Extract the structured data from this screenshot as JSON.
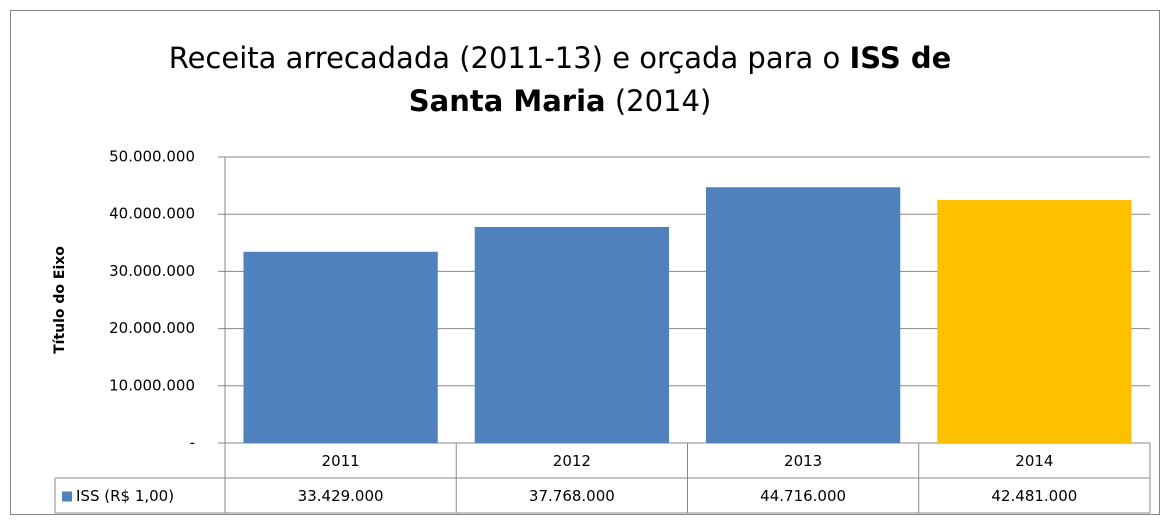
{
  "chart_data": {
    "type": "bar",
    "title_lines": [
      [
        {
          "text": "Receita arrecadada (2011-13) e orçada para o ",
          "bold": false
        },
        {
          "text": "ISS de",
          "bold": true
        }
      ],
      [
        {
          "text": "Santa Maria",
          "bold": true
        },
        {
          "text": " (2014)",
          "bold": false
        }
      ]
    ],
    "y_axis_label": "Título do Eixo",
    "categories": [
      "2011",
      "2012",
      "2013",
      "2014"
    ],
    "series": [
      {
        "name": "ISS (R$ 1,00)",
        "color": "#4f81bd",
        "colors": [
          "#4f81bd",
          "#4f81bd",
          "#4f81bd",
          "#ffc000"
        ],
        "values": [
          33429000,
          37768000,
          44716000,
          42481000
        ],
        "value_labels": [
          "33.429.000",
          "37.768.000",
          "44.716.000",
          "42.481.000"
        ]
      }
    ],
    "ylim": [
      0,
      50000000
    ],
    "yticks": [
      {
        "value": 0,
        "label": "-"
      },
      {
        "value": 10000000,
        "label": "10.000.000"
      },
      {
        "value": 20000000,
        "label": "20.000.000"
      },
      {
        "value": 30000000,
        "label": "30.000.000"
      },
      {
        "value": 40000000,
        "label": "40.000.000"
      },
      {
        "value": 50000000,
        "label": "50.000.000"
      }
    ],
    "grid": true,
    "data_table": true
  }
}
